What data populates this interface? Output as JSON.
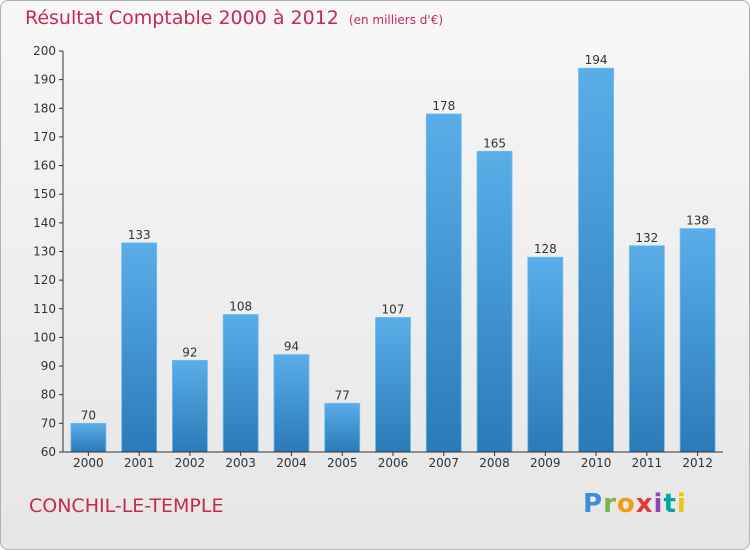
{
  "chart_data": {
    "type": "bar",
    "title": "Résultat Comptable 2000 à 2012",
    "subtitle": "(en milliers d'€)",
    "categories": [
      "2000",
      "2001",
      "2002",
      "2003",
      "2004",
      "2005",
      "2006",
      "2007",
      "2008",
      "2009",
      "2010",
      "2011",
      "2012"
    ],
    "values": [
      70,
      133,
      92,
      108,
      94,
      77,
      107,
      178,
      165,
      128,
      194,
      132,
      138
    ],
    "ylim": [
      60,
      200
    ],
    "yticks": [
      60,
      70,
      80,
      90,
      100,
      110,
      120,
      130,
      140,
      150,
      160,
      170,
      180,
      190,
      200
    ],
    "grid": false,
    "xlabel": "",
    "ylabel": ""
  },
  "footer": {
    "commune": "CONCHIL-LE-TEMPLE",
    "logo": "Proxiti"
  },
  "colors": {
    "bar_light": "#5aaee8",
    "bar_dark": "#2a7ab8",
    "title": "#c8284f",
    "axis": "#333333"
  }
}
